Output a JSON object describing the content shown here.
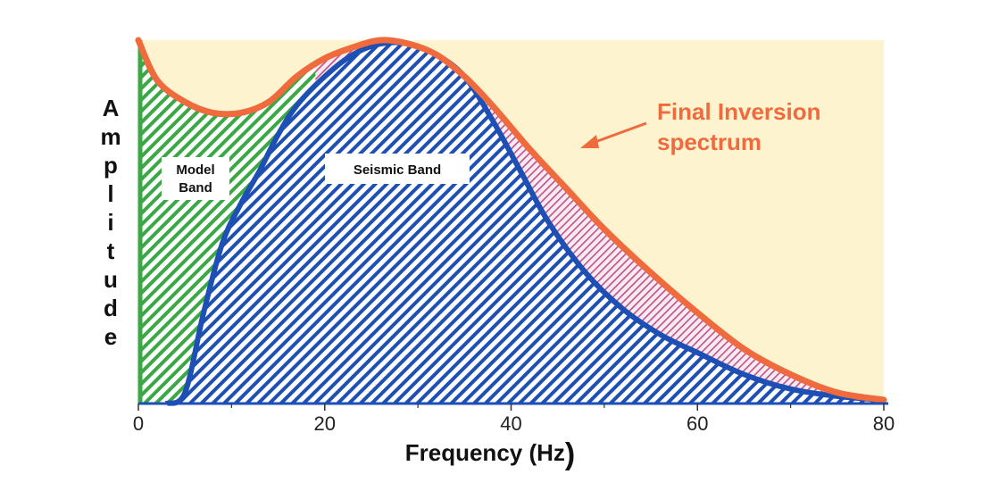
{
  "chart_data": {
    "type": "area",
    "xlabel": "Frequency (Hz",
    "xlabel_close": ")",
    "ylabel": "Amplitude",
    "xlim": [
      0,
      80
    ],
    "x_ticks": [
      0,
      20,
      40,
      60,
      80
    ],
    "ylim": [
      0,
      1
    ],
    "grid": false,
    "series": [
      {
        "name": "Final Inversion spectrum",
        "color": "#ef6a3c",
        "x": [
          0,
          2,
          5,
          8,
          11,
          14,
          17,
          20,
          23,
          26,
          29,
          32,
          35,
          38,
          42,
          46,
          50,
          55,
          60,
          65,
          70,
          75,
          80
        ],
        "y": [
          1.0,
          0.89,
          0.83,
          0.8,
          0.8,
          0.83,
          0.9,
          0.95,
          0.98,
          1.0,
          0.99,
          0.96,
          0.9,
          0.82,
          0.7,
          0.59,
          0.48,
          0.36,
          0.25,
          0.15,
          0.08,
          0.03,
          0.01
        ]
      },
      {
        "name": "",
        "color": "#1e4fb4",
        "x": [
          3,
          5,
          7,
          9,
          11,
          13,
          15,
          17,
          20,
          23,
          26,
          29,
          32,
          35,
          38,
          41,
          44,
          48,
          52,
          56,
          60,
          65,
          70,
          75,
          80
        ],
        "y": [
          0.0,
          0.03,
          0.25,
          0.44,
          0.55,
          0.64,
          0.74,
          0.82,
          0.9,
          0.96,
          0.99,
          0.99,
          0.96,
          0.9,
          0.78,
          0.64,
          0.5,
          0.36,
          0.26,
          0.19,
          0.14,
          0.08,
          0.04,
          0.02,
          0.01
        ]
      }
    ],
    "annotations": {
      "model_band": [
        "Model",
        "Band"
      ],
      "seismic_band": "Seismic Band",
      "final_spectrum": [
        "Final Inversion",
        "spectrum"
      ]
    },
    "colors": {
      "background_fill": "#fdf3cf",
      "model_band_hatch": "#3aa845",
      "seismic_band_hatch": "#1e4fb4",
      "excess_hatch": "#c0508a",
      "final_spectrum": "#ef6a3c",
      "annotation_text": "#ef6a3c"
    }
  }
}
